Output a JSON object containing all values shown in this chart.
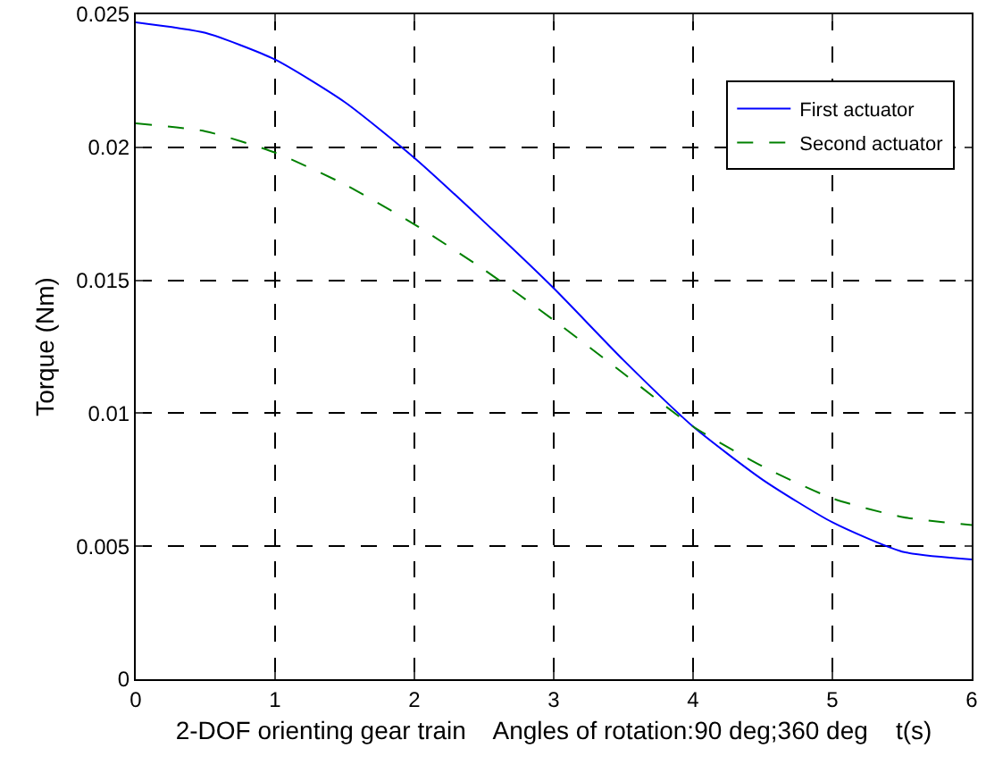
{
  "chart_data": {
    "type": "line",
    "xlabel": "2-DOF orienting gear train    Angles of rotation:90 deg;360 deg    t(s)",
    "ylabel": "Torque (Nm)",
    "x": [
      0,
      0.5,
      1,
      1.5,
      2,
      2.5,
      3,
      3.5,
      4,
      4.5,
      5,
      5.5,
      6
    ],
    "series": [
      {
        "name": "First actuator",
        "color": "#0000ff",
        "line_style": "solid",
        "values": [
          0.0247,
          0.0243,
          0.0233,
          0.0217,
          0.0196,
          0.0172,
          0.0147,
          0.012,
          0.0095,
          0.0075,
          0.0059,
          0.0048,
          0.0045
        ]
      },
      {
        "name": "Second actuator",
        "color": "#008000",
        "line_style": "dashed",
        "values": [
          0.0209,
          0.0206,
          0.0198,
          0.0186,
          0.0171,
          0.0154,
          0.0135,
          0.0115,
          0.0095,
          0.008,
          0.0068,
          0.0061,
          0.0058
        ]
      }
    ],
    "xlim": [
      0,
      6
    ],
    "xticks": [
      0,
      1,
      2,
      3,
      4,
      5,
      6
    ],
    "ylim": [
      0,
      0.025
    ],
    "yticks": [
      0,
      0.005,
      0.01,
      0.015,
      0.02,
      0.025
    ],
    "grid": true,
    "legend": "top right",
    "marker": "none"
  }
}
